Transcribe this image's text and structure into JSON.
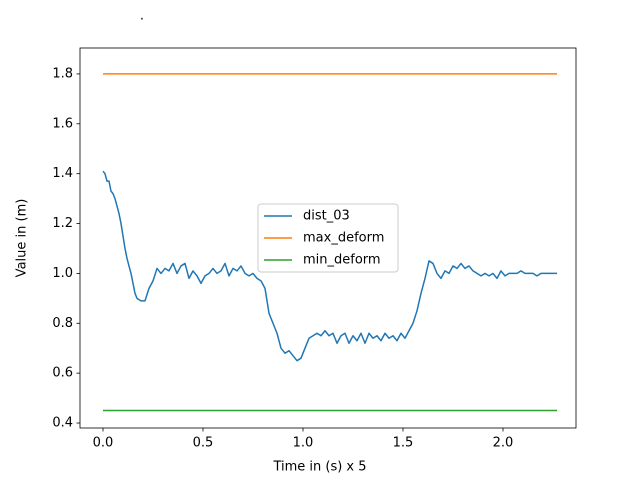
{
  "chart_data": {
    "type": "line",
    "title": ".",
    "xlabel": "Time in (s) x 5",
    "ylabel": "Value in (m)",
    "xlim": [
      -0.115,
      2.365
    ],
    "ylim": [
      0.38,
      1.904
    ],
    "xticks": [
      {
        "value": 0,
        "label": "0.0"
      },
      0.5,
      {
        "value": 1,
        "label": "1.0"
      },
      1.5,
      {
        "value": 2,
        "label": "2.0"
      }
    ],
    "yticks": [
      0.4,
      0.6,
      0.8,
      {
        "value": 1,
        "label": "1.0"
      },
      1.2,
      1.4,
      1.6,
      1.8
    ],
    "legend": "center",
    "grid": false,
    "series": [
      {
        "name": "dist_03",
        "color": "#1f77b4",
        "x": [
          0,
          0.01,
          0.02,
          0.03,
          0.04,
          0.05,
          0.06,
          0.07,
          0.08,
          0.09,
          0.1,
          0.11,
          0.12,
          0.14,
          0.15,
          0.16,
          0.17,
          0.19,
          0.21,
          0.23,
          0.25,
          0.27,
          0.29,
          0.31,
          0.33,
          0.35,
          0.37,
          0.39,
          0.41,
          0.43,
          0.45,
          0.47,
          0.49,
          0.51,
          0.53,
          0.55,
          0.57,
          0.59,
          0.61,
          0.63,
          0.65,
          0.67,
          0.69,
          0.71,
          0.73,
          0.75,
          0.77,
          0.79,
          0.81,
          0.83,
          0.85,
          0.87,
          0.89,
          0.91,
          0.93,
          0.95,
          0.97,
          0.99,
          1.01,
          1.03,
          1.05,
          1.07,
          1.09,
          1.11,
          1.13,
          1.15,
          1.17,
          1.19,
          1.21,
          1.23,
          1.25,
          1.27,
          1.29,
          1.31,
          1.33,
          1.35,
          1.37,
          1.39,
          1.41,
          1.43,
          1.45,
          1.47,
          1.49,
          1.51,
          1.53,
          1.55,
          1.57,
          1.59,
          1.61,
          1.63,
          1.65,
          1.67,
          1.69,
          1.71,
          1.73,
          1.75,
          1.77,
          1.79,
          1.81,
          1.83,
          1.85,
          1.87,
          1.89,
          1.91,
          1.93,
          1.95,
          1.97,
          1.99,
          2.01,
          2.03,
          2.05,
          2.07,
          2.09,
          2.11,
          2.13,
          2.15,
          2.17,
          2.19,
          2.21,
          2.23,
          2.25,
          2.27
        ],
        "values": [
          1.41,
          1.4,
          1.37,
          1.37,
          1.33,
          1.32,
          1.3,
          1.27,
          1.24,
          1.2,
          1.15,
          1.1,
          1.06,
          1.0,
          0.96,
          0.92,
          0.9,
          0.89,
          0.89,
          0.94,
          0.97,
          1.02,
          1.0,
          1.02,
          1.01,
          1.04,
          1.0,
          1.03,
          1.04,
          0.98,
          1.01,
          0.99,
          0.96,
          0.99,
          1.0,
          1.02,
          1.0,
          1.01,
          1.04,
          0.99,
          1.02,
          1.01,
          1.03,
          1.0,
          0.99,
          1.0,
          0.98,
          0.97,
          0.94,
          0.84,
          0.8,
          0.76,
          0.7,
          0.68,
          0.69,
          0.67,
          0.65,
          0.66,
          0.7,
          0.74,
          0.75,
          0.76,
          0.75,
          0.77,
          0.75,
          0.76,
          0.72,
          0.75,
          0.76,
          0.72,
          0.75,
          0.73,
          0.76,
          0.72,
          0.76,
          0.74,
          0.75,
          0.73,
          0.76,
          0.74,
          0.75,
          0.73,
          0.76,
          0.74,
          0.77,
          0.8,
          0.85,
          0.92,
          0.98,
          1.05,
          1.04,
          1.0,
          0.98,
          1.01,
          1.0,
          1.03,
          1.02,
          1.04,
          1.02,
          1.03,
          1.01,
          1.0,
          0.99,
          1.0,
          0.99,
          1.0,
          0.98,
          1.01,
          0.99,
          1.0,
          1.0,
          1.0,
          1.01,
          1.0,
          1.0,
          1.0,
          0.99,
          1.0,
          1.0,
          1.0,
          1.0,
          1.0
        ]
      },
      {
        "name": "max_deform",
        "color": "#ff7f0e",
        "x": [
          0,
          2.27
        ],
        "values": [
          1.8,
          1.8
        ]
      },
      {
        "name": "min_deform",
        "color": "#2ca02c",
        "x": [
          0,
          2.27
        ],
        "values": [
          0.45,
          0.45
        ]
      }
    ]
  }
}
